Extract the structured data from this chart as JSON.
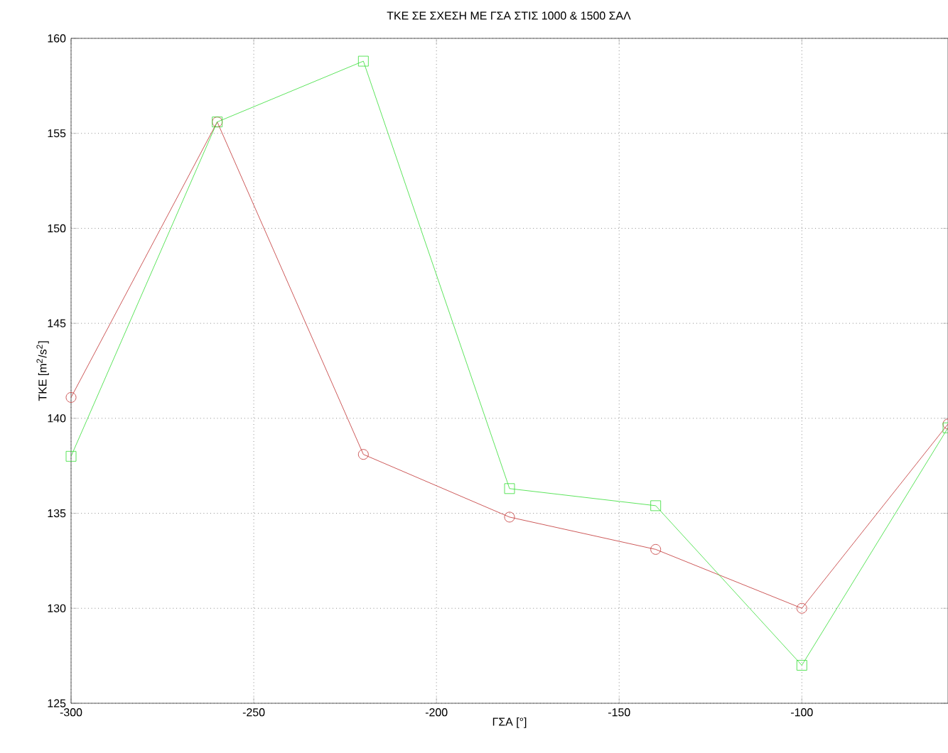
{
  "chart_data": {
    "type": "line",
    "title": "TKE ΣΕ ΣΧΕΣΗ ΜΕ ΓΣΑ ΣΤΙΣ 1000 & 1500 ΣΑΛ",
    "xlabel": "ΓΣΑ [°]",
    "ylabel": "TKE [m$^{2}$/s$^{2}$]",
    "x": [
      -300,
      -260,
      -220,
      -180,
      -140,
      -100,
      -60
    ],
    "series": [
      {
        "color": "#c03030",
        "marker": "circle",
        "values": [
          141.1,
          155.6,
          138.1,
          134.8,
          133.1,
          130.0,
          139.7
        ]
      },
      {
        "color": "#33dd33",
        "marker": "square",
        "values": [
          138.0,
          155.6,
          158.8,
          136.3,
          135.4,
          127.0,
          139.5
        ]
      }
    ],
    "xlim": [
      -300,
      -60
    ],
    "ylim": [
      125,
      160
    ],
    "xticks": [
      -300,
      -250,
      -200,
      -150,
      -100
    ],
    "yticks": [
      125,
      130,
      135,
      140,
      145,
      150,
      155,
      160
    ],
    "grid": true,
    "line_style": "solid"
  }
}
